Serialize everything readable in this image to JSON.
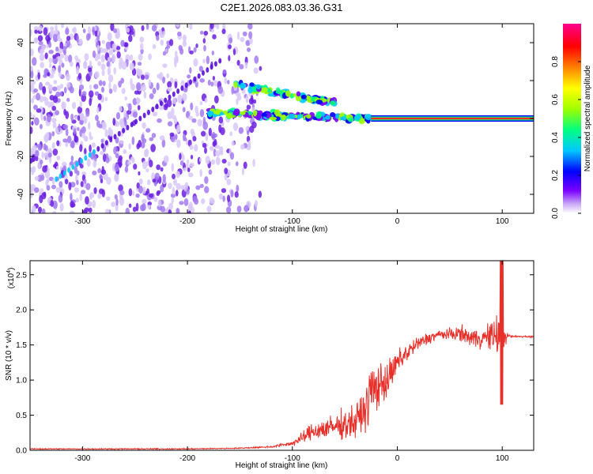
{
  "title": "C2E1.2026.083.03.36.G31",
  "colors": {
    "signal_line": "#e8302a",
    "trace_band": "#ff2a1a",
    "scatter": "#7a2be8",
    "colorbar": [
      "#ffffff",
      "#c8a8f5",
      "#7a00ff",
      "#0000ff",
      "#00c8ff",
      "#00ff80",
      "#a0ff00",
      "#ffff00",
      "#ff8000",
      "#ff0000",
      "#ff0090"
    ]
  },
  "chart_data": [
    {
      "id": "spectrogram",
      "type": "heatmap",
      "xlabel": "Height of straight line (km)",
      "ylabel": "Frequency (Hz)",
      "xlim": [
        -350,
        130
      ],
      "ylim": [
        -50,
        50
      ],
      "x_ticks": [
        "-300",
        "-200",
        "-100",
        "0",
        "100"
      ],
      "y_ticks": [
        "-40",
        "-20",
        "0",
        "20",
        "40"
      ],
      "colorbar": {
        "label": "Normalized spectral amplitude",
        "range": [
          0.0,
          1.0
        ],
        "ticks": [
          "0.0",
          "0.2",
          "0.4",
          "0.6",
          "0.8"
        ]
      },
      "features": [
        {
          "kind": "noise",
          "x_range": [
            -350,
            -130
          ],
          "y_range": [
            -50,
            50
          ]
        },
        {
          "kind": "upper_branch",
          "x_range": [
            -155,
            -60
          ],
          "freq_start": 18,
          "freq_end": 8
        },
        {
          "kind": "lower_branch",
          "x_range": [
            -180,
            -25
          ],
          "freq_start": 3,
          "freq_end": 0
        },
        {
          "kind": "steady_tone",
          "x_range": [
            -25,
            130
          ],
          "freq": 0
        }
      ]
    },
    {
      "id": "snr",
      "type": "line",
      "xlabel": "Height of straight line (km)",
      "ylabel": "SNR (10 * v/v)",
      "y_multiplier": "(x10",
      "y_multiplier_exp": "4",
      "xlim": [
        -350,
        130
      ],
      "ylim": [
        0,
        2.7
      ],
      "x_ticks": [
        "-300",
        "-200",
        "-100",
        "0",
        "100"
      ],
      "y_ticks": [
        "0.0",
        "0.5",
        "1.0",
        "1.5",
        "2.0",
        "2.5"
      ],
      "series": [
        {
          "x": [
            -350,
            -300,
            -250,
            -200,
            -150,
            -120,
            -100,
            -90,
            -80,
            -70,
            -60,
            -50,
            -40,
            -30,
            -25,
            -20,
            -15,
            -10,
            -5,
            0,
            10,
            20,
            30,
            40,
            50,
            60,
            70,
            80,
            90,
            95,
            100,
            105,
            110,
            120,
            130
          ],
          "y": [
            0.02,
            0.02,
            0.02,
            0.02,
            0.03,
            0.05,
            0.1,
            0.18,
            0.28,
            0.3,
            0.33,
            0.38,
            0.4,
            0.6,
            0.85,
            0.9,
            0.95,
            1.0,
            1.1,
            1.25,
            1.4,
            1.52,
            1.6,
            1.65,
            1.65,
            1.67,
            1.6,
            1.6,
            1.62,
            1.65,
            1.65,
            1.63,
            1.62,
            1.62,
            1.62
          ],
          "noise_amp": [
            0.01,
            0.01,
            0.01,
            0.01,
            0.01,
            0.02,
            0.05,
            0.12,
            0.2,
            0.22,
            0.25,
            0.3,
            0.35,
            0.45,
            0.6,
            0.5,
            0.45,
            0.4,
            0.3,
            0.25,
            0.2,
            0.15,
            0.12,
            0.1,
            0.12,
            0.15,
            0.18,
            0.22,
            0.3,
            0.4,
            0.6,
            0.05,
            0.02,
            0.02,
            0.02
          ]
        }
      ]
    }
  ]
}
